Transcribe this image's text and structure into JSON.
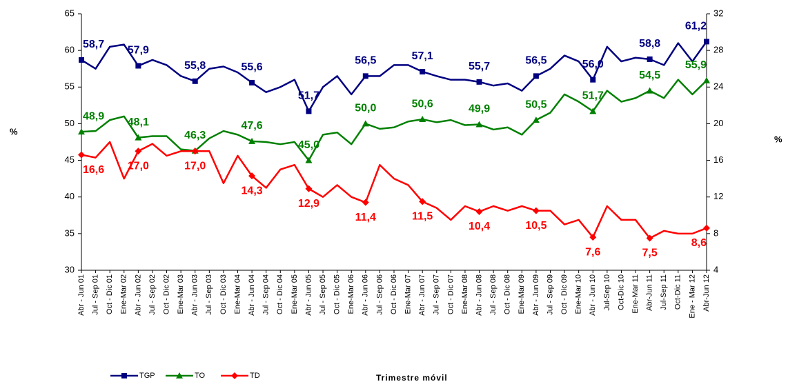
{
  "chart_data": {
    "type": "line",
    "categories": [
      "Abr - Jun 01",
      "Jul - Sep 01",
      "Oct - Dic 01",
      "Ene-Mar 02",
      "Abr - Jun 02",
      "Jul - Sep 02",
      "Oct - Dic 02",
      "Ene-Mar 03",
      "Abr - Jun 03",
      "Jul - Sep 03",
      "Oct - Dic 03",
      "Ene-Mar 04",
      "Abr - Jun 04",
      "Jul - Sep 04",
      "Oct - Dic 04",
      "Ene-Mar 05",
      "Abr - Jun 05",
      "Jul - Sep 05",
      "Oct - Dic 05",
      "Ene-Mar 06",
      "Abr - Jun 06",
      "Jul - Sep 06",
      "Oct - Dic 06",
      "Ene-Mar 07",
      "Abr - Jun 07",
      "Jul - Sep 07",
      "Oct - Dic 07",
      "Ene-Mar 08",
      "Abr - Jun 08",
      "Jul - Sep 08",
      "Oct - Dic 08",
      "Ene-Mar 09",
      "Abr - Jun 09",
      "Jul - Sep 09",
      "Oct - Dic 09",
      "Ene-Mar 10",
      "Abr - Jun 10",
      "Jul-Sep 10",
      "Oct-Dic 10",
      "Ene-Mar 11",
      "Abr-Jun 11",
      "Jul-Sep 11",
      "Oct-Dic 11",
      "Ene - Mar 12",
      "Abr-Jun 12"
    ],
    "series": [
      {
        "name": "TGP",
        "color": "#000080",
        "marker": "square",
        "axis": "y",
        "values": [
          58.7,
          57.5,
          60.5,
          60.8,
          57.9,
          58.7,
          58.0,
          56.5,
          55.8,
          57.5,
          57.8,
          57.0,
          55.6,
          54.3,
          55.0,
          56.0,
          51.7,
          55.0,
          56.5,
          54.0,
          56.5,
          56.5,
          58.0,
          58.0,
          57.1,
          56.5,
          56.0,
          56.0,
          55.7,
          55.2,
          55.5,
          54.5,
          56.5,
          57.5,
          59.3,
          58.5,
          56.0,
          60.5,
          58.5,
          59.0,
          58.8,
          58.0,
          61.0,
          58.5,
          61.2
        ],
        "value_labels": [
          "58,7",
          null,
          null,
          null,
          "57,9",
          null,
          null,
          null,
          "55,8",
          null,
          null,
          null,
          "55,6",
          null,
          null,
          null,
          "51,7",
          null,
          null,
          null,
          "56,5",
          null,
          null,
          null,
          "57,1",
          null,
          null,
          null,
          "55,7",
          null,
          null,
          null,
          "56,5",
          null,
          null,
          null,
          "56,0",
          null,
          null,
          null,
          "58,8",
          null,
          null,
          null,
          "61,2"
        ]
      },
      {
        "name": "TO",
        "color": "#008000",
        "marker": "triangle",
        "axis": "y",
        "values": [
          48.9,
          49.0,
          50.5,
          51.0,
          48.1,
          48.3,
          48.3,
          46.5,
          46.3,
          48.0,
          49.0,
          48.5,
          47.6,
          47.5,
          47.2,
          47.5,
          45.0,
          48.5,
          48.8,
          47.2,
          50.0,
          49.3,
          49.5,
          50.3,
          50.6,
          50.2,
          50.5,
          49.8,
          49.9,
          49.2,
          49.5,
          48.5,
          50.5,
          51.5,
          54.0,
          53.0,
          51.7,
          54.5,
          53.0,
          53.5,
          54.5,
          53.5,
          56.0,
          54.0,
          55.9
        ],
        "value_labels": [
          "48,9",
          null,
          null,
          null,
          "48,1",
          null,
          null,
          null,
          "46,3",
          null,
          null,
          null,
          "47,6",
          null,
          null,
          null,
          "45,0",
          null,
          null,
          null,
          "50,0",
          null,
          null,
          null,
          "50,6",
          null,
          null,
          null,
          "49,9",
          null,
          null,
          null,
          "50,5",
          null,
          null,
          null,
          "51,7",
          null,
          null,
          null,
          "54,5",
          null,
          null,
          null,
          "55,9"
        ]
      },
      {
        "name": "TD",
        "color": "#ff0000",
        "marker": "diamond",
        "axis": "y2",
        "values": [
          16.6,
          16.3,
          18.0,
          14.0,
          17.0,
          17.8,
          16.5,
          17.0,
          17.0,
          17.0,
          13.5,
          16.5,
          14.3,
          13.0,
          15.0,
          15.5,
          12.9,
          12.0,
          13.3,
          12.0,
          11.4,
          15.5,
          14.0,
          13.3,
          11.5,
          10.8,
          9.5,
          11.0,
          10.4,
          11.0,
          10.5,
          11.0,
          10.5,
          10.5,
          9.0,
          9.5,
          7.6,
          11.0,
          9.5,
          9.5,
          7.5,
          8.3,
          8.0,
          8.0,
          8.6
        ],
        "value_labels": [
          "16,6",
          null,
          null,
          null,
          "17,0",
          null,
          null,
          null,
          "17,0",
          null,
          null,
          null,
          "14,3",
          null,
          null,
          null,
          "12,9",
          null,
          null,
          null,
          "11,4",
          null,
          null,
          null,
          "11,5",
          null,
          null,
          null,
          "10,4",
          null,
          null,
          null,
          "10,5",
          null,
          null,
          null,
          "7,6",
          null,
          null,
          null,
          "7,5",
          null,
          null,
          null,
          "8,6"
        ]
      }
    ],
    "ylim": [
      30,
      65
    ],
    "yticks": [
      30,
      35,
      40,
      45,
      50,
      55,
      60,
      65
    ],
    "y2lim": [
      4,
      32
    ],
    "y2ticks": [
      4,
      8,
      12,
      16,
      20,
      24,
      28,
      32
    ],
    "y_label": "%",
    "y2_label": "%",
    "x_label": "Trimestre móvil",
    "legend": "bottom-left"
  }
}
